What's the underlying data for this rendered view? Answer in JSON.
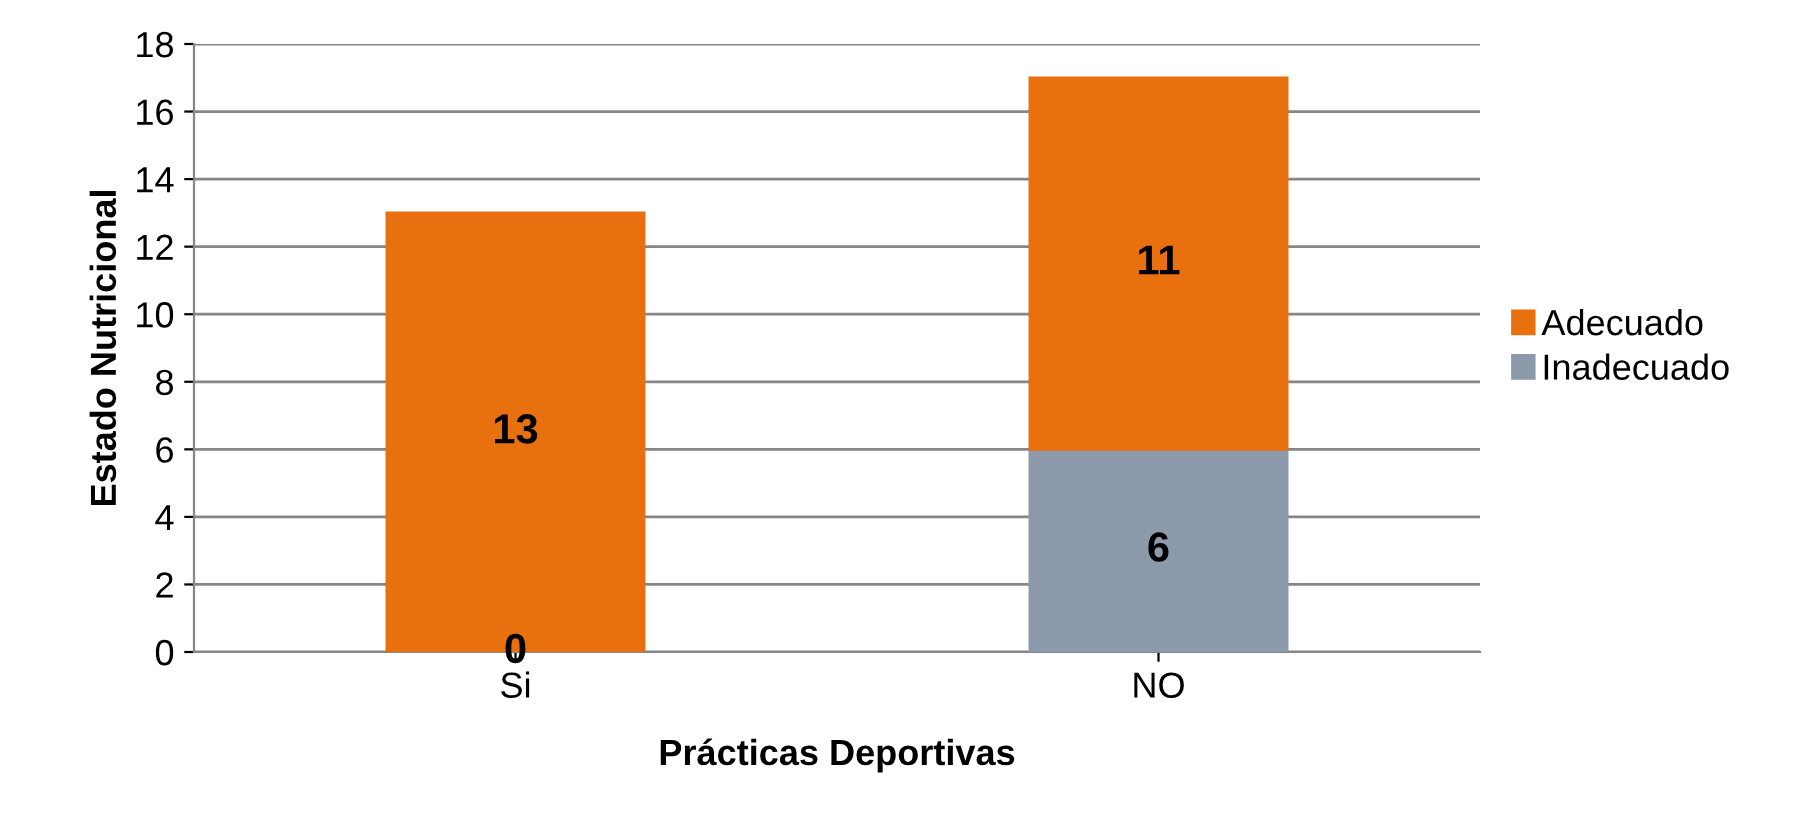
{
  "chart_data": {
    "type": "bar",
    "stacked": true,
    "xlabel": "Prácticas Deportivas",
    "ylabel": "Estado Nutricional",
    "categories": [
      "Si",
      "NO"
    ],
    "series": [
      {
        "name": "Inadecuado",
        "color": "#8c9aab",
        "values": [
          0,
          6
        ]
      },
      {
        "name": "Adecuado",
        "color": "#e8700f",
        "values": [
          13,
          11
        ]
      }
    ],
    "ylim": [
      0,
      18
    ],
    "yticks": [
      0,
      2,
      4,
      6,
      8,
      10,
      12,
      14,
      16,
      18
    ],
    "grid": "y",
    "legend": "right",
    "data_labels": true
  }
}
